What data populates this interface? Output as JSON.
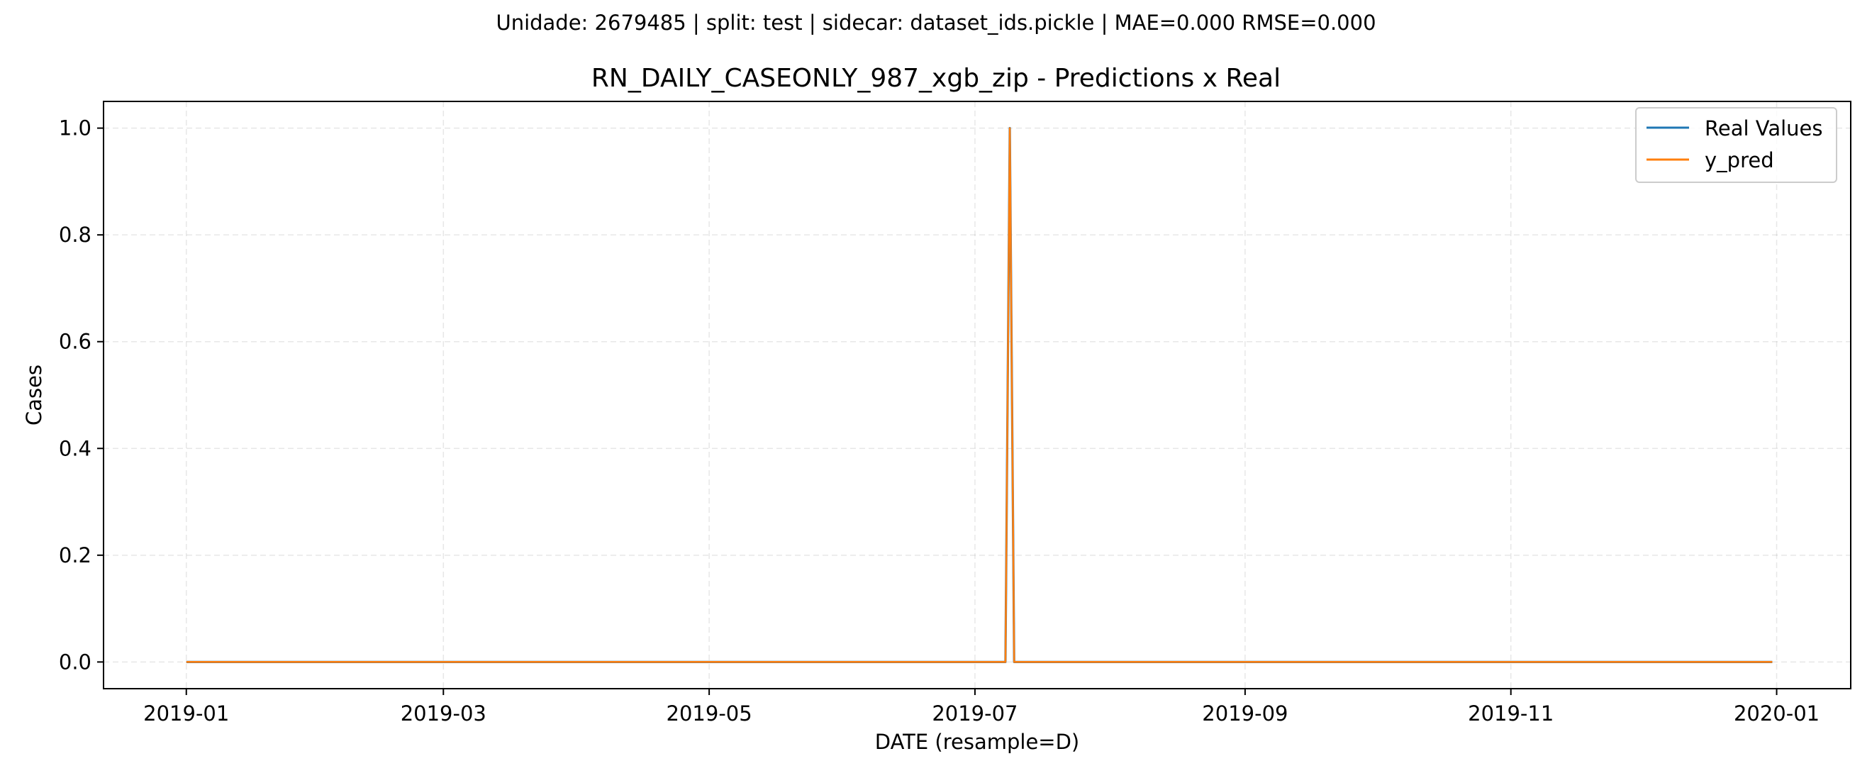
{
  "suptitle": "Unidade: 2679485 | split: test | sidecar: dataset_ids.pickle | MAE=0.000  RMSE=0.000",
  "colors": {
    "real": "#1f77b4",
    "pred": "#ff7f0e",
    "grid": "#b0b0b0",
    "axes": "#000000"
  },
  "chart_data": {
    "type": "line",
    "title": "RN_DAILY_CASEONLY_987_xgb_zip - Predictions x Real",
    "xlabel": "DATE (resample=D)",
    "ylabel": "Cases",
    "x_type": "date",
    "xlim": [
      "2018-12-13",
      "2020-01-18"
    ],
    "ylim": [
      -0.05,
      1.05
    ],
    "x_ticks": [
      "2019-01-01",
      "2019-03-01",
      "2019-05-01",
      "2019-07-01",
      "2019-09-01",
      "2019-11-01",
      "2020-01-01"
    ],
    "x_tick_labels": [
      "2019-01",
      "2019-03",
      "2019-05",
      "2019-07",
      "2019-09",
      "2019-11",
      "2020-01"
    ],
    "y_ticks": [
      0.0,
      0.2,
      0.4,
      0.6,
      0.8,
      1.0
    ],
    "y_tick_labels": [
      "0.0",
      "0.2",
      "0.4",
      "0.6",
      "0.8",
      "1.0"
    ],
    "grid": true,
    "legend_position": "top-right",
    "series": [
      {
        "name": "Real Values",
        "color": "#1f77b4",
        "points": [
          {
            "x": "2019-01-01",
            "y": 0
          },
          {
            "x": "2019-07-08",
            "y": 0
          },
          {
            "x": "2019-07-09",
            "y": 1
          },
          {
            "x": "2019-07-10",
            "y": 0
          },
          {
            "x": "2019-12-31",
            "y": 0
          }
        ]
      },
      {
        "name": "y_pred",
        "color": "#ff7f0e",
        "points": [
          {
            "x": "2019-01-01",
            "y": 0
          },
          {
            "x": "2019-07-08",
            "y": 0
          },
          {
            "x": "2019-07-09",
            "y": 1
          },
          {
            "x": "2019-07-10",
            "y": 0
          },
          {
            "x": "2019-12-31",
            "y": 0
          }
        ]
      }
    ]
  }
}
